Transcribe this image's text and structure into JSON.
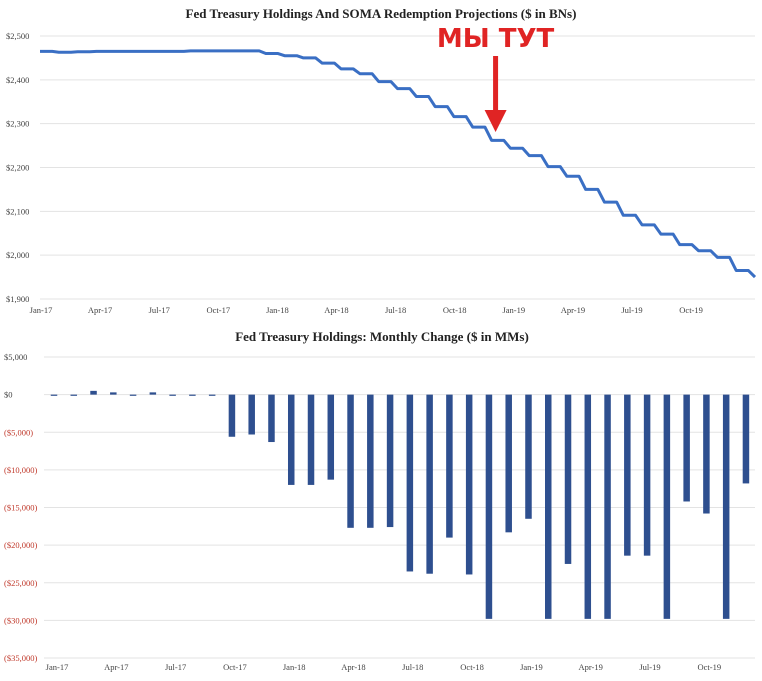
{
  "chart_data": [
    {
      "type": "line",
      "title": "Fed Treasury Holdings And SOMA Redemption Projections ($ in BNs)",
      "xlabel": "",
      "ylabel": "",
      "ylim": [
        1900,
        2500
      ],
      "y_ticks": [
        1900,
        2000,
        2100,
        2200,
        2300,
        2400,
        2500
      ],
      "y_tick_labels": [
        "$1,900",
        "$2,000",
        "$2,100",
        "$2,200",
        "$2,300",
        "$2,400",
        "$2,500"
      ],
      "x_tick_labels": [
        "Jan-17",
        "Apr-17",
        "Jul-17",
        "Oct-17",
        "Jan-18",
        "Apr-18",
        "Jul-18",
        "Oct-18",
        "Jan-19",
        "Apr-19",
        "Jul-19",
        "Oct-19"
      ],
      "series_color": "#3a6fc4",
      "series": [
        {
          "name": "Treasury Holdings",
          "values": [
            2465,
            2463,
            2464,
            2465,
            2465,
            2465,
            2465,
            2465,
            2466,
            2466,
            2466,
            2466,
            2460,
            2455,
            2450,
            2438,
            2425,
            2414,
            2396,
            2380,
            2362,
            2339,
            2316,
            2292,
            2262,
            2244,
            2227,
            2202,
            2180,
            2150,
            2121,
            2091,
            2069,
            2048,
            2024,
            2010,
            1995,
            1965,
            1950
          ]
        }
      ],
      "annotation": {
        "text": "МЫ ТУТ",
        "at_index": 24,
        "color": "#e02424"
      }
    },
    {
      "type": "bar",
      "title": "Fed Treasury Holdings: Monthly Change ($ in MMs)",
      "xlabel": "",
      "ylabel": "",
      "ylim": [
        -35000,
        5000
      ],
      "y_ticks": [
        5000,
        0,
        -5000,
        -10000,
        -15000,
        -20000,
        -25000,
        -30000,
        -35000
      ],
      "y_tick_labels": [
        "$5,000",
        "$0",
        "($5,000)",
        "($10,000)",
        "($15,000)",
        "($20,000)",
        "($25,000)",
        "($30,000)",
        "($35,000)"
      ],
      "x_tick_labels": [
        "Jan-17",
        "Apr-17",
        "Jul-17",
        "Oct-17",
        "Jan-18",
        "Apr-18",
        "Jul-18",
        "Oct-18",
        "Jan-19",
        "Apr-19",
        "Jul-19",
        "Oct-19"
      ],
      "bar_color": "#2e4f8f",
      "series": [
        {
          "name": "Monthly Change",
          "values": [
            -150,
            -100,
            500,
            300,
            -150,
            300,
            -150,
            -100,
            -100,
            -5600,
            -5300,
            -6300,
            -12000,
            -12000,
            -11300,
            -17700,
            -17700,
            -17600,
            -23500,
            -23800,
            -19000,
            -23900,
            -29800,
            -18300,
            -16500,
            -29800,
            -22500,
            -29800,
            -29800,
            -21400,
            -21400,
            -29800,
            -14200,
            -15800,
            -29800,
            -11800
          ]
        }
      ]
    }
  ]
}
